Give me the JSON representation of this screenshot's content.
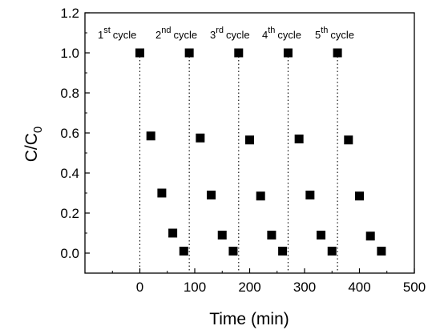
{
  "chart_data": {
    "type": "scatter",
    "title": "",
    "xlabel": "Time (min)",
    "ylabel": "C/C0",
    "ylabel_main": "C/C",
    "ylabel_sub": "0",
    "xlim": [
      -100,
      500
    ],
    "ylim": [
      -0.1,
      1.2
    ],
    "xticks": [
      0,
      100,
      200,
      300,
      400,
      500
    ],
    "yticks": [
      0.0,
      0.2,
      0.4,
      0.6,
      0.8,
      1.0,
      1.2
    ],
    "xtick_labels": [
      "0",
      "100",
      "200",
      "300",
      "400",
      "500"
    ],
    "ytick_labels": [
      "0.0",
      "0.2",
      "0.4",
      "0.6",
      "0.8",
      "1.0",
      "1.2"
    ],
    "marker": "square",
    "marker_color": "#000000",
    "grid": false,
    "series": [
      {
        "x": [
          0,
          20,
          40,
          60,
          80,
          90,
          110,
          130,
          150,
          170,
          180,
          200,
          220,
          240,
          260,
          270,
          290,
          310,
          330,
          350,
          360,
          380,
          400,
          420,
          440
        ],
        "y": [
          1.0,
          0.585,
          0.3,
          0.1,
          0.01,
          1.0,
          0.575,
          0.29,
          0.09,
          0.01,
          1.0,
          0.565,
          0.285,
          0.09,
          0.01,
          1.0,
          0.57,
          0.29,
          0.09,
          0.01,
          1.0,
          0.565,
          0.285,
          0.085,
          0.01
        ]
      }
    ],
    "cycle_dividers": [
      0,
      90,
      180,
      270,
      360
    ],
    "annotations": [
      {
        "num": "1",
        "sup": "st",
        "word": "cycle"
      },
      {
        "num": "2",
        "sup": "nd",
        "word": "cycle"
      },
      {
        "num": "3",
        "sup": "rd",
        "word": "cycle"
      },
      {
        "num": "4",
        "sup": "th",
        "word": "cycle"
      },
      {
        "num": "5",
        "sup": "th",
        "word": "cycle"
      }
    ]
  }
}
